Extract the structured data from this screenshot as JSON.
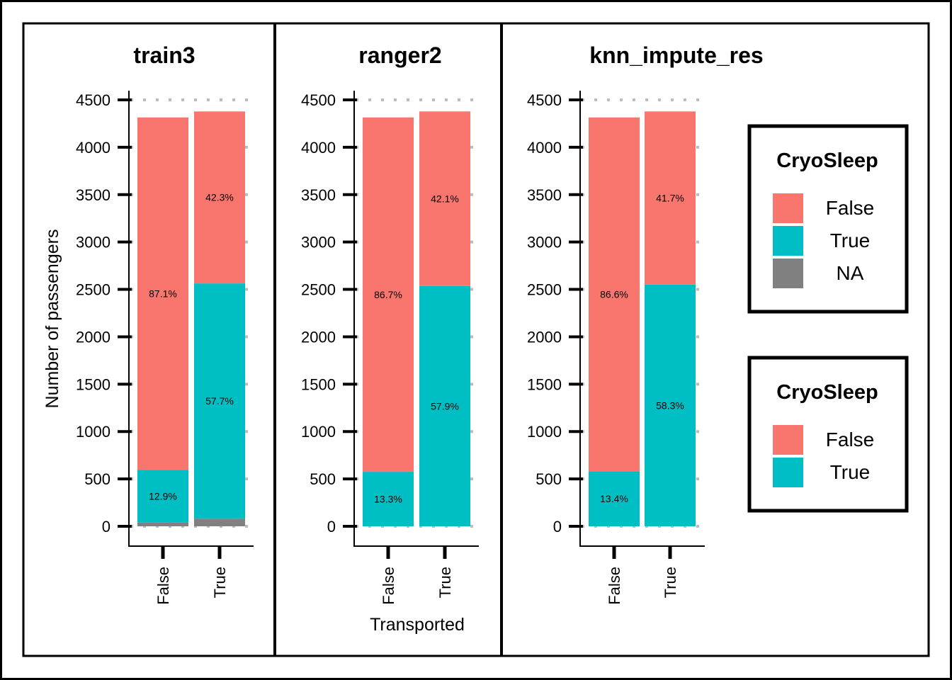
{
  "chart_data": {
    "type": "bar",
    "stacked": true,
    "ylabel": "Number of passengers",
    "xlabel": "Transported",
    "ylim": [
      0,
      4500
    ],
    "yticks": [
      0,
      500,
      1000,
      1500,
      2000,
      2500,
      3000,
      3500,
      4000,
      4500
    ],
    "categories": [
      "False",
      "True"
    ],
    "grid": "dotted horizontal major",
    "colors": {
      "False": "#F8766D",
      "True": "#00BFC4",
      "NA": "#808080"
    },
    "panels": [
      {
        "title": "train3",
        "series": [
          {
            "name": "NA",
            "values": [
              40,
              80
            ]
          },
          {
            "name": "True",
            "values": [
              554,
              2483
            ]
          },
          {
            "name": "False",
            "values": [
              3721,
              1815
            ]
          }
        ],
        "labels": [
          {
            "bar": "False",
            "segment": "True",
            "text": "12.9%"
          },
          {
            "bar": "False",
            "segment": "False",
            "text": "87.1%"
          },
          {
            "bar": "True",
            "segment": "True",
            "text": "57.7%"
          },
          {
            "bar": "True",
            "segment": "False",
            "text": "42.3%"
          }
        ]
      },
      {
        "title": "ranger2",
        "series": [
          {
            "name": "True",
            "values": [
              575,
              2535
            ]
          },
          {
            "name": "False",
            "values": [
              3740,
              1843
            ]
          }
        ],
        "labels": [
          {
            "bar": "False",
            "segment": "True",
            "text": "13.3%"
          },
          {
            "bar": "False",
            "segment": "False",
            "text": "86.7%"
          },
          {
            "bar": "True",
            "segment": "True",
            "text": "57.9%"
          },
          {
            "bar": "True",
            "segment": "False",
            "text": "42.1%"
          }
        ]
      },
      {
        "title": "knn_impute_res",
        "series": [
          {
            "name": "True",
            "values": [
              580,
              2550
            ]
          },
          {
            "name": "False",
            "values": [
              3735,
              1828
            ]
          }
        ],
        "labels": [
          {
            "bar": "False",
            "segment": "True",
            "text": "13.4%"
          },
          {
            "bar": "False",
            "segment": "False",
            "text": "86.6%"
          },
          {
            "bar": "True",
            "segment": "True",
            "text": "58.3%"
          },
          {
            "bar": "True",
            "segment": "False",
            "text": "41.7%"
          }
        ]
      }
    ],
    "legends": [
      {
        "title": "CryoSleep",
        "items": [
          "False",
          "True",
          "NA"
        ]
      },
      {
        "title": "CryoSleep",
        "items": [
          "False",
          "True"
        ]
      }
    ]
  }
}
